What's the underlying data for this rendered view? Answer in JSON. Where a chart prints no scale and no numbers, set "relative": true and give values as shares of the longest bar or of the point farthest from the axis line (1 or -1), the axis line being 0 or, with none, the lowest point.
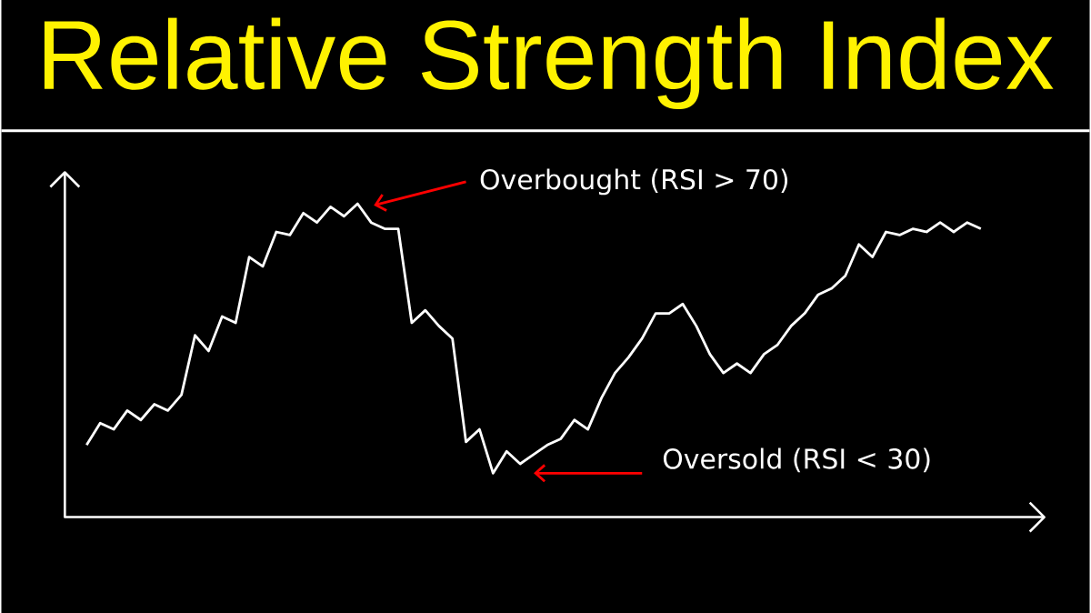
{
  "chart_data": {
    "type": "line",
    "title": "Relative Strength Index",
    "categories": [
      null,
      null,
      null,
      null,
      null,
      null,
      null,
      null,
      null,
      null,
      null,
      null,
      null,
      null,
      null,
      null,
      null,
      null,
      null,
      null,
      null,
      null,
      null,
      null,
      null,
      null,
      null,
      null,
      null,
      null,
      null,
      null,
      null,
      null,
      null,
      null,
      null,
      null,
      null,
      null,
      null,
      null,
      null,
      null,
      null,
      null,
      null,
      null,
      null,
      null,
      null,
      null,
      null,
      null,
      null,
      null,
      null,
      null,
      null,
      null,
      null,
      null,
      null,
      null,
      null,
      null,
      null
    ],
    "values": [
      0.23,
      0.3,
      0.28,
      0.34,
      0.31,
      0.36,
      0.34,
      0.39,
      0.58,
      0.53,
      0.64,
      0.62,
      0.83,
      0.8,
      0.91,
      0.9,
      0.97,
      0.94,
      0.99,
      0.96,
      1,
      0.94,
      0.92,
      0.92,
      0.62,
      0.66,
      0.61,
      0.57,
      0.24,
      0.28,
      0.14,
      0.21,
      0.17,
      0.2,
      0.23,
      0.25,
      0.31,
      0.28,
      0.38,
      0.46,
      0.51,
      0.57,
      0.65,
      0.65,
      0.68,
      0.61,
      0.52,
      0.46,
      0.49,
      0.46,
      0.52,
      0.55,
      0.61,
      0.65,
      0.71,
      0.73,
      0.77,
      0.87,
      0.83,
      0.91,
      0.9,
      0.92,
      0.91,
      0.94,
      0.91,
      0.94,
      0.92
    ],
    "color": "#ffffff",
    "relative": true,
    "line_style": "solid",
    "annotations": [
      "Overbought (RSI > 70)",
      "Oversold (RSI < 30)"
    ]
  }
}
